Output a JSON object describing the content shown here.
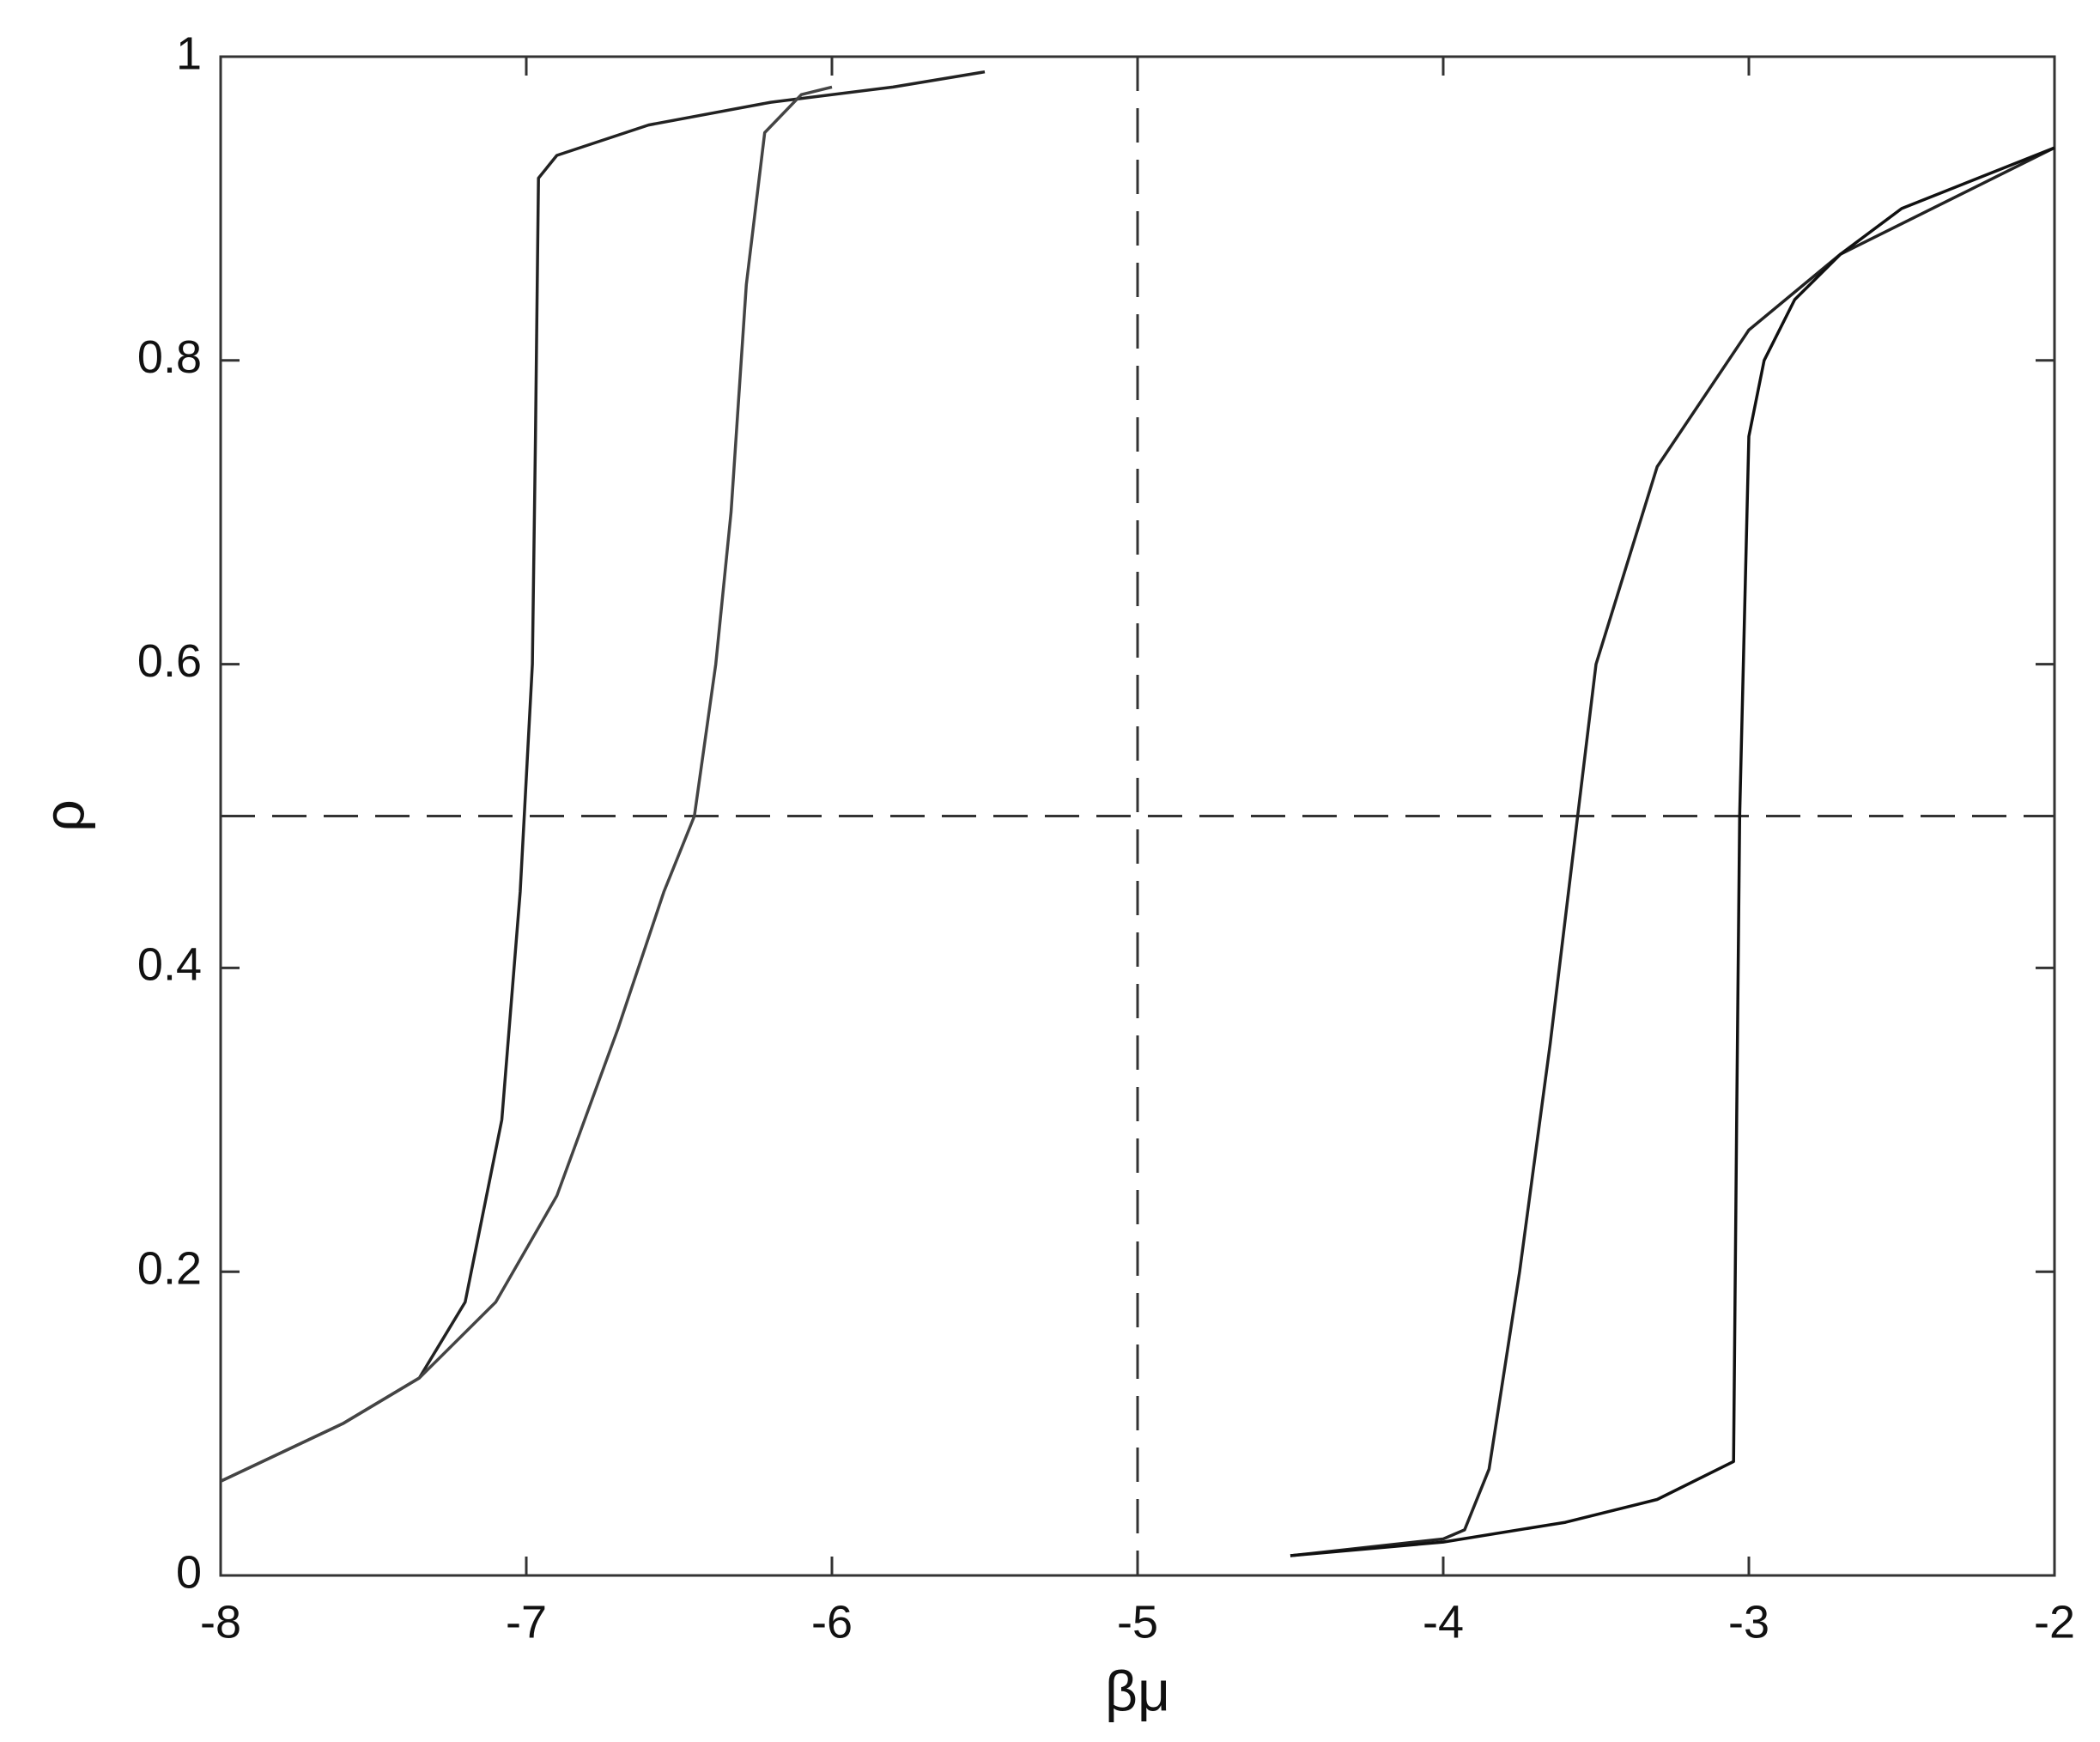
{
  "chart_data": {
    "type": "line",
    "xlabel": "βμ",
    "ylabel": "ρ",
    "xlim": [
      -8,
      -2
    ],
    "xticks": [
      -8,
      -7,
      -6,
      -5,
      -4,
      -3,
      -2
    ],
    "ylim": [
      0,
      1
    ],
    "yticks": [
      0,
      0.2,
      0.4,
      0.6,
      0.8,
      1
    ],
    "vline": -5,
    "hline": 0.5,
    "series": [
      {
        "color": "#222222",
        "x": [
          -8,
          -7.6,
          -7.35,
          -7.2,
          -7.08,
          -7.02,
          -6.98,
          -6.97,
          -6.96,
          -6.9,
          -6.6,
          -6.2,
          -5.8,
          -5.5
        ],
        "values": [
          0.062,
          0.1,
          0.13,
          0.18,
          0.3,
          0.45,
          0.6,
          0.75,
          0.92,
          0.935,
          0.955,
          0.97,
          0.98,
          0.99
        ]
      },
      {
        "color": "#444444",
        "x": [
          -8,
          -7.6,
          -7.35,
          -7.1,
          -6.9,
          -6.7,
          -6.55,
          -6.45,
          -6.38,
          -6.33,
          -6.28,
          -6.22,
          -6.1,
          -6.0
        ],
        "values": [
          0.062,
          0.1,
          0.13,
          0.18,
          0.25,
          0.36,
          0.45,
          0.5,
          0.6,
          0.7,
          0.85,
          0.95,
          0.975,
          0.98
        ]
      },
      {
        "color": "#222222",
        "x": [
          -2,
          -2.3,
          -2.7,
          -3.0,
          -3.3,
          -3.5,
          -3.56,
          -3.65,
          -3.75,
          -3.85,
          -3.93,
          -4.0,
          -4.5
        ],
        "values": [
          0.94,
          0.91,
          0.87,
          0.82,
          0.73,
          0.6,
          0.5,
          0.35,
          0.2,
          0.07,
          0.03,
          0.024,
          0.013
        ]
      },
      {
        "color": "#111111",
        "x": [
          -4.5,
          -4.0,
          -3.6,
          -3.3,
          -3.05,
          -3.04,
          -3.03,
          -3.0,
          -2.95,
          -2.85,
          -2.7,
          -2.5,
          -2.0
        ],
        "values": [
          0.013,
          0.022,
          0.035,
          0.05,
          0.075,
          0.3,
          0.5,
          0.75,
          0.8,
          0.84,
          0.87,
          0.9,
          0.94
        ]
      }
    ]
  }
}
